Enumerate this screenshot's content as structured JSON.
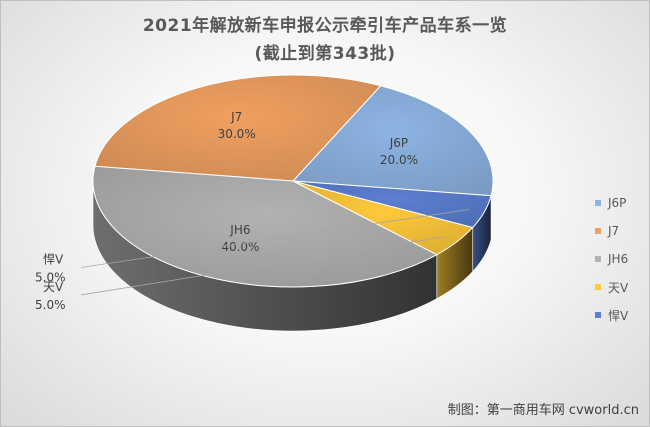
{
  "chart_data": {
    "type": "pie",
    "title": "2021年解放新车申报公示牵引车产品车系一览",
    "subtitle": "(截止到第343批)",
    "slices": [
      {
        "label": "J6P",
        "value": 20.0,
        "value_label": "20.0%",
        "color": "#8eb4e3"
      },
      {
        "label": "J7",
        "value": 30.0,
        "value_label": "30.0%",
        "color": "#f0a060"
      },
      {
        "label": "JH6",
        "value": 40.0,
        "value_label": "40.0%",
        "color": "#b2b2b2"
      },
      {
        "label": "天V",
        "value": 5.0,
        "value_label": "5.0%",
        "color": "#ffc93a"
      },
      {
        "label": "悍V",
        "value": 5.0,
        "value_label": "5.0%",
        "color": "#5b7fd1"
      }
    ],
    "legend_position": "right",
    "style": "3d"
  },
  "credit": "制图：第一商用车网 cvworld.cn"
}
